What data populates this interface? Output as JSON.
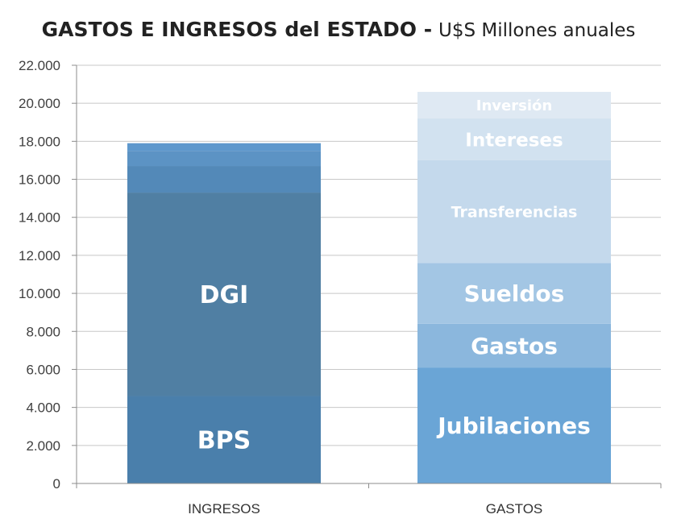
{
  "chart_data": {
    "type": "bar",
    "stacked": true,
    "title": "GASTOS E INGRESOS del ESTADO -",
    "subtitle": "U$S Millones anuales",
    "categories": [
      "INGRESOS",
      "GASTOS"
    ],
    "ylim": [
      0,
      22000
    ],
    "yticks": [
      0,
      2000,
      4000,
      6000,
      8000,
      10000,
      12000,
      14000,
      16000,
      18000,
      20000,
      22000
    ],
    "ytick_labels": [
      "0",
      "2.000",
      "4.000",
      "6.000",
      "8.000",
      "10.000",
      "12.000",
      "14.000",
      "16.000",
      "18.000",
      "20.000",
      "22.000"
    ],
    "grid": true,
    "stacks": [
      {
        "category": "INGRESOS",
        "segments": [
          {
            "label": "BPS",
            "value": 4600,
            "color": "#4a7fab"
          },
          {
            "label": "DGI",
            "value": 10700,
            "color": "#507fa3"
          },
          {
            "label": "",
            "value": 1400,
            "color": "#5389b8"
          },
          {
            "label": "",
            "value": 800,
            "color": "#5c93c4"
          },
          {
            "label": "",
            "value": 400,
            "color": "#5e98cd"
          }
        ]
      },
      {
        "category": "GASTOS",
        "segments": [
          {
            "label": "Jubilaciones",
            "value": 6100,
            "color": "#6aa5d6"
          },
          {
            "label": "Gastos",
            "value": 2300,
            "color": "#8bb7dd"
          },
          {
            "label": "Sueldos",
            "value": 3200,
            "color": "#a3c6e4"
          },
          {
            "label": "Transferencias",
            "value": 5400,
            "color": "#c4d9ec"
          },
          {
            "label": "Intereses",
            "value": 2200,
            "color": "#d2e2f0"
          },
          {
            "label": "Inversión",
            "value": 1400,
            "color": "#dfe9f3"
          }
        ]
      }
    ]
  }
}
